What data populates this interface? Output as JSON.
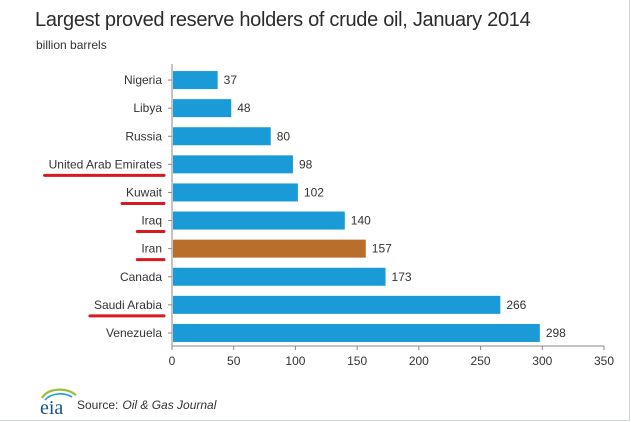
{
  "chart_data": {
    "type": "bar",
    "orientation": "horizontal",
    "title": "Largest proved reserve holders of  crude oil, January 2014",
    "subtitle": "billion barrels",
    "categories": [
      "Nigeria",
      "Libya",
      "Russia",
      "United Arab Emirates",
      "Kuwait",
      "Iraq",
      "Iran",
      "Canada",
      "Saudi Arabia",
      "Venezuela"
    ],
    "values": [
      37,
      48,
      80,
      98,
      102,
      140,
      157,
      173,
      266,
      298
    ],
    "highlighted": "Iran",
    "underlined": [
      "United Arab Emirates",
      "Kuwait",
      "Iraq",
      "Iran",
      "Saudi Arabia"
    ],
    "xlim": [
      0,
      350
    ],
    "xticks": [
      0,
      50,
      100,
      150,
      200,
      250,
      300,
      350
    ],
    "grid": false,
    "colors": {
      "bar": "#1a9ad6",
      "highlight": "#b96e2b",
      "underline": "#d71920"
    }
  },
  "source": {
    "prefix": "Source:",
    "name": "Oil & Gas Journal"
  },
  "logo": {
    "icon": "eia-logo",
    "text": "eia"
  }
}
